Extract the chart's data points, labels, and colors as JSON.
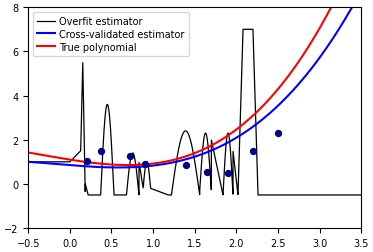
{
  "xlim": [
    -0.5,
    3.5
  ],
  "ylim": [
    -2,
    8
  ],
  "xticks": [
    -0.5,
    0.0,
    0.5,
    1.0,
    1.5,
    2.0,
    2.5,
    3.0,
    3.5
  ],
  "yticks": [
    -2,
    0,
    2,
    4,
    6,
    8
  ],
  "legend_labels": [
    "Overfit estimator",
    "Cross-validated estimator",
    "True polynomial"
  ],
  "legend_colors": [
    "black",
    "blue",
    "red"
  ],
  "dot_x": [
    0.2,
    0.38,
    0.72,
    0.9,
    1.4,
    1.65,
    1.9,
    2.2,
    2.5
  ],
  "dot_y": [
    1.05,
    1.5,
    1.25,
    0.9,
    0.85,
    0.55,
    0.5,
    1.5,
    2.3
  ],
  "figsize": [
    3.73,
    2.53
  ],
  "dpi": 100
}
